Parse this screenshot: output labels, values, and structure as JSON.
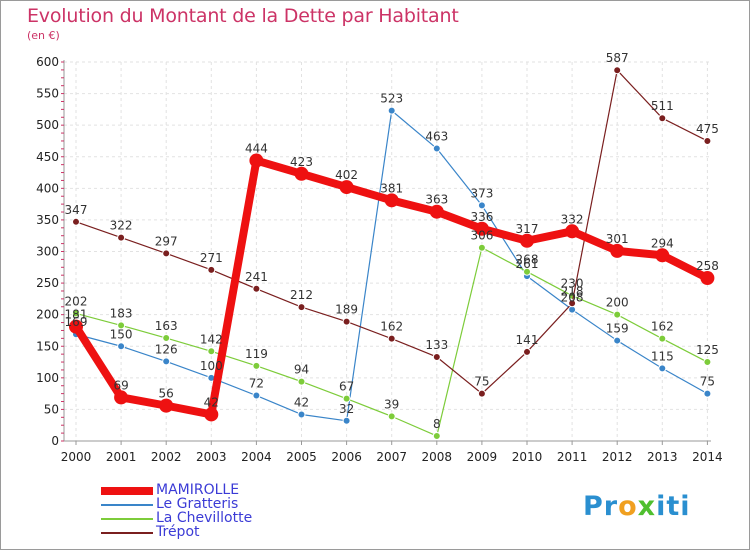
{
  "title": "Evolution du Montant de la Dette par Habitant",
  "unit": "(en €)",
  "chart_data": {
    "type": "line",
    "title": "Evolution du Montant de la Dette par Habitant",
    "ylabel": "(en €)",
    "xlabel": "",
    "ylim": [
      0,
      600
    ],
    "yticks": [
      0,
      50,
      100,
      150,
      200,
      250,
      300,
      350,
      400,
      450,
      500,
      550,
      600
    ],
    "categories": [
      "2000",
      "2001",
      "2002",
      "2003",
      "2004",
      "2005",
      "2006",
      "2007",
      "2008",
      "2009",
      "2010",
      "2011",
      "2012",
      "2013",
      "2014"
    ],
    "grid": true,
    "legend_position": "bottom-left",
    "series": [
      {
        "name": "MAMIROLLE",
        "color": "#ee1111",
        "values": [
          181,
          69,
          56,
          42,
          444,
          423,
          402,
          381,
          363,
          336,
          317,
          332,
          301,
          294,
          258
        ],
        "emphasis": true
      },
      {
        "name": "Le Gratteris",
        "color": "#3a85c9",
        "values": [
          169,
          150,
          126,
          100,
          72,
          42,
          32,
          523,
          463,
          373,
          261,
          208,
          159,
          115,
          75
        ]
      },
      {
        "name": "La Chevillotte",
        "color": "#7dcc3a",
        "values": [
          202,
          183,
          163,
          142,
          119,
          94,
          67,
          39,
          8,
          306,
          268,
          230,
          200,
          162,
          125
        ]
      },
      {
        "name": "Trépot",
        "color": "#7a1f1f",
        "values": [
          347,
          322,
          297,
          271,
          241,
          212,
          189,
          162,
          133,
          75,
          141,
          218,
          587,
          511,
          475
        ]
      }
    ]
  },
  "logo": {
    "p1": "Pr",
    "o": "o",
    "x": "x",
    "p2": "iti"
  }
}
